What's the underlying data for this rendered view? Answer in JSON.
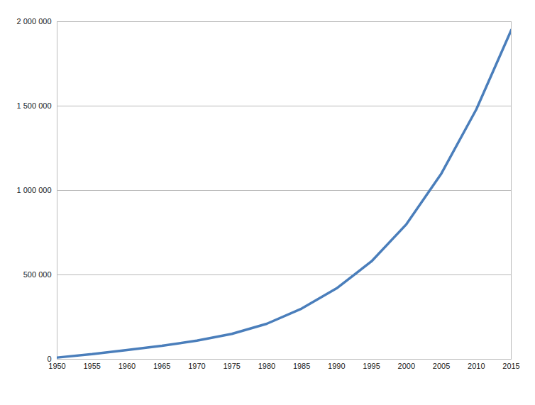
{
  "chart_data": {
    "type": "line",
    "x": [
      1950,
      1955,
      1960,
      1965,
      1970,
      1975,
      1980,
      1985,
      1990,
      1995,
      2000,
      2005,
      2010,
      2015
    ],
    "series": [
      {
        "color": "#4a7ebb",
        "values": [
          10000,
          30000,
          55000,
          80000,
          110000,
          150000,
          210000,
          300000,
          420000,
          580000,
          800000,
          1100000,
          1480000,
          1950000
        ]
      }
    ],
    "xlim": [
      1950,
      2015
    ],
    "xticks": [
      1950,
      1955,
      1960,
      1965,
      1970,
      1975,
      1980,
      1985,
      1990,
      1995,
      2000,
      2005,
      2010,
      2015
    ],
    "ylim": [
      0,
      2000000
    ],
    "yticks": [
      0,
      {
        "value": 500000,
        "label": "500 000"
      },
      {
        "value": 1000000,
        "label": "1 000 000"
      },
      {
        "value": 1500000,
        "label": "1 500 000"
      },
      {
        "value": 2000000,
        "label": "2 000 000"
      }
    ],
    "grid": true
  }
}
